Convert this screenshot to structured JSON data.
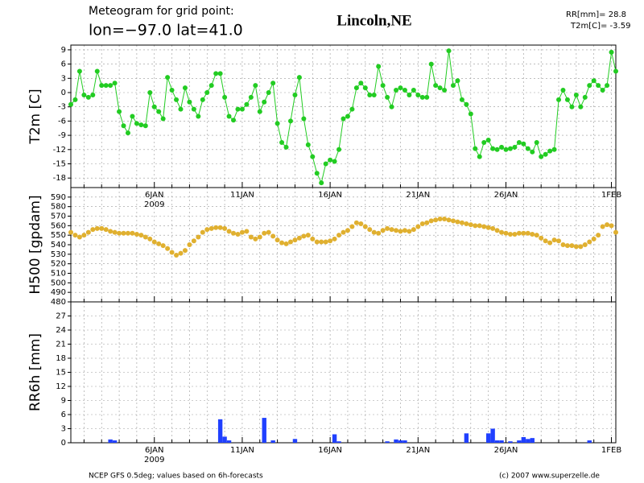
{
  "header": {
    "subtitle": "Meteogram for grid point:",
    "coords": "lon=−97.0  lat=41.0",
    "title": "Lincoln,NE",
    "info": [
      "RR[mm]= 28.8",
      "T2m[C]= -3.59"
    ]
  },
  "footer": {
    "source": "NCEP GFS 0.5deg; values based on 6h-forecasts",
    "credit": "(c) 2007 www.superzelle.de"
  },
  "chart_data": [
    {
      "type": "line",
      "ylabel": "T2m [C]",
      "color": "#22cc22",
      "markers": true,
      "show_xlabels": true,
      "grid": true,
      "xlim": [
        1.25,
        32.25
      ],
      "xticks": [
        {
          "value": 6,
          "label": "6JAN"
        },
        {
          "value": 11,
          "label": "11JAN"
        },
        {
          "value": 16,
          "label": "16JAN"
        },
        {
          "value": 21,
          "label": "21JAN"
        },
        {
          "value": 26,
          "label": "26JAN"
        },
        {
          "value": 32,
          "label": "1FEB"
        }
      ],
      "xminorticks": [
        2,
        3,
        4,
        5,
        7,
        8,
        9,
        10,
        12,
        13,
        14,
        15,
        17,
        18,
        19,
        20,
        22,
        23,
        24,
        25,
        27,
        28,
        29,
        30,
        31
      ],
      "year_label": "2009",
      "ylim": [
        -20,
        10
      ],
      "yticks": [
        -18,
        -15,
        -12,
        -9,
        -6,
        -3,
        0,
        3,
        6,
        9
      ],
      "x": [
        1.25,
        1.5,
        1.75,
        2,
        2.25,
        2.5,
        2.75,
        3,
        3.25,
        3.5,
        3.75,
        4,
        4.25,
        4.5,
        4.75,
        5,
        5.25,
        5.5,
        5.75,
        6,
        6.25,
        6.5,
        6.75,
        7,
        7.25,
        7.5,
        7.75,
        8,
        8.25,
        8.5,
        8.75,
        9,
        9.25,
        9.5,
        9.75,
        10,
        10.25,
        10.5,
        10.75,
        11,
        11.25,
        11.5,
        11.75,
        12,
        12.25,
        12.5,
        12.75,
        13,
        13.25,
        13.5,
        13.75,
        14,
        14.25,
        14.5,
        14.75,
        15,
        15.25,
        15.5,
        15.75,
        16,
        16.25,
        16.5,
        16.75,
        17,
        17.25,
        17.5,
        17.75,
        18,
        18.25,
        18.5,
        18.75,
        19,
        19.25,
        19.5,
        19.75,
        20,
        20.25,
        20.5,
        20.75,
        21,
        21.25,
        21.5,
        21.75,
        22,
        22.25,
        22.5,
        22.75,
        23,
        23.25,
        23.5,
        23.75,
        24,
        24.25,
        24.5,
        24.75,
        25,
        25.25,
        25.5,
        25.75,
        26,
        26.25,
        26.5,
        26.75,
        27,
        27.25,
        27.5,
        27.75,
        28,
        28.25,
        28.5,
        28.75,
        29,
        29.25,
        29.5,
        29.75,
        30,
        30.25,
        30.5,
        30.75,
        31,
        31.25,
        31.5,
        31.75,
        32,
        32.25
      ],
      "values": [
        -2.5,
        -1.5,
        4.5,
        -0.5,
        -1,
        -0.5,
        4.5,
        1.5,
        1.5,
        1.5,
        2,
        -4,
        -7,
        -8.5,
        -5,
        -6.5,
        -6.8,
        -7,
        0,
        -3,
        -4,
        -5.5,
        3.2,
        0.5,
        -1.5,
        -3.5,
        1,
        -2,
        -3.5,
        -5,
        -1.5,
        0,
        1.5,
        4,
        4,
        -1,
        -5,
        -5.8,
        -3.5,
        -3.5,
        -2.5,
        -1,
        1.5,
        -4,
        -2,
        0,
        2,
        -6.5,
        -10.5,
        -11.5,
        -6,
        -0.5,
        3.2,
        -5.5,
        -11,
        -13.5,
        -17,
        -19,
        -15,
        -14.2,
        -14.5,
        -12,
        -5.5,
        -5,
        -3.5,
        1,
        2,
        1,
        -0.5,
        -0.5,
        5.5,
        1.5,
        -1,
        -3,
        0.5,
        1,
        0.5,
        -0.5,
        0.5,
        -0.5,
        -1,
        -1,
        6,
        1.5,
        1,
        0.5,
        8.8,
        1.5,
        2.5,
        -1.5,
        -2.5,
        -4.5,
        -11.8,
        -13.5,
        -10.5,
        -10,
        -11.8,
        -12,
        -11.5,
        -12,
        -11.8,
        -11.5,
        -10.5,
        -10.8,
        -11.8,
        -12.5,
        -10.5,
        -13.5,
        -13,
        -12.3,
        -12,
        -1.5,
        0.5,
        -1.5,
        -3,
        -0.5,
        -3,
        -1,
        1.5,
        2.5,
        1.5,
        0.5,
        1.5,
        8.5,
        4.5
      ]
    },
    {
      "type": "scatter",
      "ylabel": "H500 [gpdam]",
      "color": "#e0b030",
      "show_xlabels": false,
      "grid": true,
      "xlim": [
        1.25,
        32.25
      ],
      "xticks": [
        {
          "value": 6,
          "label": "6JAN"
        },
        {
          "value": 11,
          "label": "11JAN"
        },
        {
          "value": 16,
          "label": "16JAN"
        },
        {
          "value": 21,
          "label": "21JAN"
        },
        {
          "value": 26,
          "label": "26JAN"
        },
        {
          "value": 32,
          "label": "1FEB"
        }
      ],
      "xminorticks": [
        2,
        3,
        4,
        5,
        7,
        8,
        9,
        10,
        12,
        13,
        14,
        15,
        17,
        18,
        19,
        20,
        22,
        23,
        24,
        25,
        27,
        28,
        29,
        30,
        31
      ],
      "ylim": [
        480,
        600
      ],
      "yticks": [
        480,
        490,
        500,
        510,
        520,
        530,
        540,
        550,
        560,
        570,
        580,
        590
      ],
      "x": [
        1.25,
        1.5,
        1.75,
        2,
        2.25,
        2.5,
        2.75,
        3,
        3.25,
        3.5,
        3.75,
        4,
        4.25,
        4.5,
        4.75,
        5,
        5.25,
        5.5,
        5.75,
        6,
        6.25,
        6.5,
        6.75,
        7,
        7.25,
        7.5,
        7.75,
        8,
        8.25,
        8.5,
        8.75,
        9,
        9.25,
        9.5,
        9.75,
        10,
        10.25,
        10.5,
        10.75,
        11,
        11.25,
        11.5,
        11.75,
        12,
        12.25,
        12.5,
        12.75,
        13,
        13.25,
        13.5,
        13.75,
        14,
        14.25,
        14.5,
        14.75,
        15,
        15.25,
        15.5,
        15.75,
        16,
        16.25,
        16.5,
        16.75,
        17,
        17.25,
        17.5,
        17.75,
        18,
        18.25,
        18.5,
        18.75,
        19,
        19.25,
        19.5,
        19.75,
        20,
        20.25,
        20.5,
        20.75,
        21,
        21.25,
        21.5,
        21.75,
        22,
        22.25,
        22.5,
        22.75,
        23,
        23.25,
        23.5,
        23.75,
        24,
        24.25,
        24.5,
        24.75,
        25,
        25.25,
        25.5,
        25.75,
        26,
        26.25,
        26.5,
        26.75,
        27,
        27.25,
        27.5,
        27.75,
        28,
        28.25,
        28.5,
        28.75,
        29,
        29.25,
        29.5,
        29.75,
        30,
        30.25,
        30.5,
        30.75,
        31,
        31.25,
        31.5,
        31.75,
        32,
        32.25
      ],
      "values": [
        553,
        550,
        548,
        550,
        553,
        556,
        557,
        557,
        556,
        554,
        553,
        552,
        552,
        552,
        552,
        551,
        550,
        548,
        546,
        543,
        541,
        539,
        536,
        532,
        529,
        531,
        534,
        540,
        544,
        548,
        553,
        556,
        557,
        558,
        558,
        557,
        554,
        552,
        551,
        553,
        554,
        548,
        546,
        548,
        552,
        553,
        549,
        545,
        542,
        541,
        543,
        545,
        547,
        549,
        550,
        546,
        543,
        543,
        543,
        544,
        546,
        550,
        553,
        555,
        559,
        563,
        562,
        559,
        556,
        553,
        552,
        555,
        557,
        556,
        555,
        554,
        555,
        554,
        556,
        559,
        562,
        563,
        565,
        566,
        567,
        567,
        566,
        565,
        564,
        563,
        562,
        561,
        560,
        560,
        559,
        558,
        557,
        555,
        553,
        552,
        551,
        551,
        552,
        552,
        552,
        551,
        550,
        547,
        544,
        542,
        545,
        544,
        540,
        539,
        539,
        538,
        538,
        540,
        543,
        546,
        550,
        559,
        561,
        560,
        553
      ]
    },
    {
      "type": "bar",
      "ylabel": "RR6h [mm]",
      "color": "#2040ff",
      "show_xlabels": true,
      "grid": true,
      "xlim": [
        1.25,
        32.25
      ],
      "xticks": [
        {
          "value": 6,
          "label": "6JAN"
        },
        {
          "value": 11,
          "label": "11JAN"
        },
        {
          "value": 16,
          "label": "16JAN"
        },
        {
          "value": 21,
          "label": "21JAN"
        },
        {
          "value": 26,
          "label": "26JAN"
        },
        {
          "value": 32,
          "label": "1FEB"
        }
      ],
      "xminorticks": [
        2,
        3,
        4,
        5,
        7,
        8,
        9,
        10,
        12,
        13,
        14,
        15,
        17,
        18,
        19,
        20,
        22,
        23,
        24,
        25,
        27,
        28,
        29,
        30,
        31
      ],
      "year_label": "2009",
      "ylim": [
        0,
        30
      ],
      "yticks": [
        0,
        3,
        6,
        9,
        12,
        15,
        18,
        21,
        24,
        27
      ],
      "x": [
        1.25,
        1.5,
        1.75,
        2,
        2.25,
        2.5,
        2.75,
        3,
        3.25,
        3.5,
        3.75,
        4,
        4.25,
        4.5,
        4.75,
        5,
        5.25,
        5.5,
        5.75,
        6,
        6.25,
        6.5,
        6.75,
        7,
        7.25,
        7.5,
        7.75,
        8,
        8.25,
        8.5,
        8.75,
        9,
        9.25,
        9.5,
        9.75,
        10,
        10.25,
        10.5,
        10.75,
        11,
        11.25,
        11.5,
        11.75,
        12,
        12.25,
        12.5,
        12.75,
        13,
        13.25,
        13.5,
        13.75,
        14,
        14.25,
        14.5,
        14.75,
        15,
        15.25,
        15.5,
        15.75,
        16,
        16.25,
        16.5,
        16.75,
        17,
        17.25,
        17.5,
        17.75,
        18,
        18.25,
        18.5,
        18.75,
        19,
        19.25,
        19.5,
        19.75,
        20,
        20.25,
        20.5,
        20.75,
        21,
        21.25,
        21.5,
        21.75,
        22,
        22.25,
        22.5,
        22.75,
        23,
        23.25,
        23.5,
        23.75,
        24,
        24.25,
        24.5,
        24.75,
        25,
        25.25,
        25.5,
        25.75,
        26,
        26.25,
        26.5,
        26.75,
        27,
        27.25,
        27.5,
        27.75,
        28,
        28.25,
        28.5,
        28.75,
        29,
        29.25,
        29.5,
        29.75,
        30,
        30.25,
        30.5,
        30.75,
        31,
        31.25,
        31.5,
        31.75,
        32,
        32.25
      ],
      "values": [
        0,
        0,
        0,
        0,
        0,
        0,
        0,
        0,
        0,
        0.7,
        0.5,
        0,
        0,
        0,
        0,
        0,
        0,
        0,
        0,
        0,
        0,
        0,
        0,
        0,
        0,
        0,
        0,
        0,
        0,
        0,
        0,
        0,
        0,
        0,
        5,
        1.3,
        0.5,
        0,
        0,
        0,
        0,
        0,
        0,
        0,
        5.3,
        0,
        0.5,
        0,
        0,
        0,
        0,
        0.8,
        0,
        0,
        0,
        0,
        0,
        0,
        0,
        0,
        1.8,
        0.3,
        0,
        0,
        0,
        0,
        0,
        0,
        0,
        0,
        0,
        0,
        0.3,
        0,
        0.7,
        0.5,
        0.5,
        0,
        0,
        0,
        0,
        0,
        0,
        0,
        0,
        0,
        0,
        0,
        0,
        0,
        2,
        0,
        0,
        0,
        0,
        2,
        3,
        0.5,
        0.5,
        0,
        0.3,
        0,
        0.5,
        1.2,
        0.8,
        1,
        0,
        0,
        0,
        0,
        0,
        0,
        0,
        0,
        0,
        0,
        0,
        0,
        0.5,
        0,
        0,
        0,
        0,
        0,
        0
      ]
    }
  ]
}
